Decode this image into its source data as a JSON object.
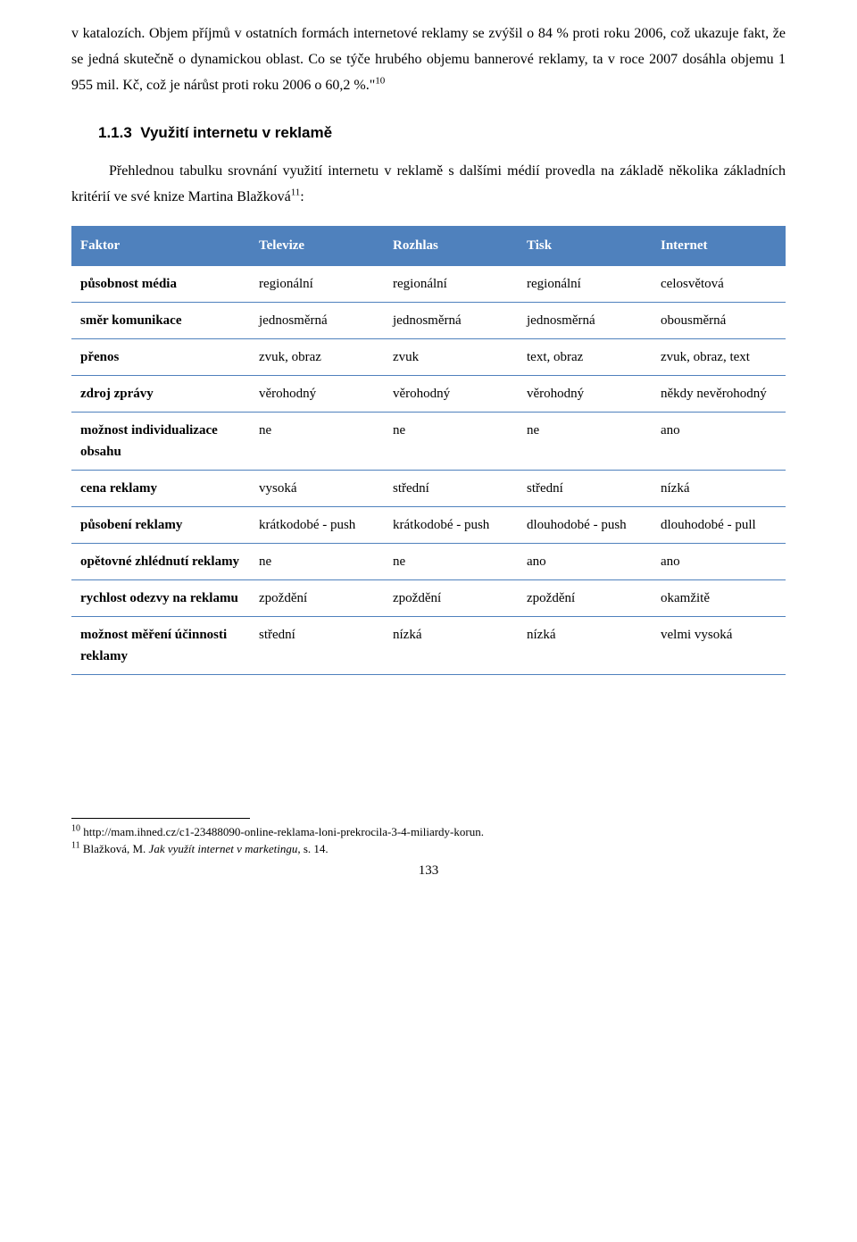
{
  "paragraph_intro": "v katalozích. Objem příjmů v ostatních formách internetové reklamy se zvýšil o 84 % proti roku 2006, což ukazuje fakt, že se jedná skutečně o dynamickou oblast. Co se týče hrubého objemu bannerové reklamy, ta v roce 2007 dosáhla objemu 1 955 mil. Kč, což je nárůst proti roku 2006 o 60,2 %.\"",
  "fn_ref_10": "10",
  "heading_number": "1.1.3",
  "heading_text": "Využití internetu v reklamě",
  "paragraph_body_a": "Přehlednou tabulku srovnání využití internetu v reklamě s dalšími médií provedla na základě několika základních kritérií ve své knize Martina Blažková",
  "fn_ref_11": "11",
  "paragraph_body_b": ":",
  "table": {
    "header_bg": "#4f81bd",
    "header_fg": "#ffffff",
    "border_color": "#4f81bd",
    "columns": [
      "Faktor",
      "Televize",
      "Rozhlas",
      "Tisk",
      "Internet"
    ],
    "rows": [
      {
        "factor": "působnost média",
        "tv": "regionální",
        "radio": "regionální",
        "print": "regionální",
        "internet": "celosvětová"
      },
      {
        "factor": "směr komunikace",
        "tv": "jednosměrná",
        "radio": "jednosměrná",
        "print": "jednosměrná",
        "internet": "obousměrná"
      },
      {
        "factor": "přenos",
        "tv": "zvuk, obraz",
        "radio": "zvuk",
        "print": "text, obraz",
        "internet": "zvuk, obraz, text"
      },
      {
        "factor": "zdroj zprávy",
        "tv": "věrohodný",
        "radio": "věrohodný",
        "print": "věrohodný",
        "internet": "někdy nevěrohodný"
      },
      {
        "factor": "možnost individualizace obsahu",
        "tv": "ne",
        "radio": "ne",
        "print": "ne",
        "internet": "ano"
      },
      {
        "factor": "cena reklamy",
        "tv": "vysoká",
        "radio": "střední",
        "print": "střední",
        "internet": "nízká"
      },
      {
        "factor": "působení reklamy",
        "tv": "krátkodobé - push",
        "radio": "krátkodobé - push",
        "print": "dlouhodobé - push",
        "internet": "dlouhodobé - pull"
      },
      {
        "factor": "opětovné zhlédnutí reklamy",
        "tv": "ne",
        "radio": "ne",
        "print": "ano",
        "internet": "ano"
      },
      {
        "factor": "rychlost odezvy na reklamu",
        "tv": "zpoždění",
        "radio": "zpoždění",
        "print": "zpoždění",
        "internet": "okamžitě"
      },
      {
        "factor": "možnost měření účinnosti reklamy",
        "tv": "střední",
        "radio": "nízká",
        "print": "nízká",
        "internet": "velmi vysoká"
      }
    ]
  },
  "footnote10_num": "10",
  "footnote10_text": " http://mam.ihned.cz/c1-23488090-online-reklama-loni-prekrocila-3-4-miliardy-korun.",
  "footnote11_num": "11",
  "footnote11_prefix": " Blažková, M. ",
  "footnote11_italic": "Jak využít internet v marketingu,",
  "footnote11_suffix": " s. 14.",
  "page_number": "133"
}
